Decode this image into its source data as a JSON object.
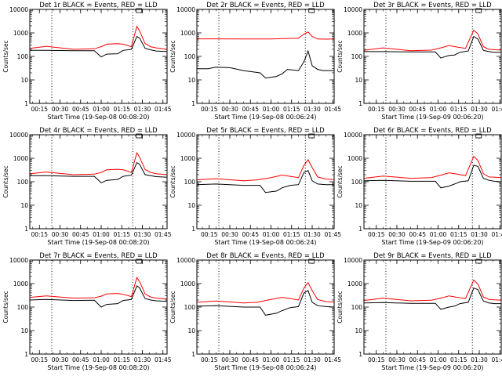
{
  "figure": {
    "ylabel": "Counts/sec"
  },
  "chart_data": [
    {
      "type": "line",
      "title": "Det 1r BLACK = Events, RED = LLD",
      "xlabel": "Start Time (19-Sep-08 00:08:20)",
      "ylabel": "Counts/sec",
      "yscale": "log",
      "ylim": [
        1,
        10000
      ],
      "yticks": [
        "1",
        "10",
        "100",
        "1000",
        "10000"
      ],
      "xticks": [
        "00:15",
        "00:30",
        "00:45",
        "01:00",
        "01:15",
        "01:30",
        "01:45"
      ],
      "xlim": [
        "00:08",
        "01:48"
      ],
      "vlines": [
        "00:24",
        "01:23"
      ],
      "series": [
        {
          "name": "Events",
          "color": "#000000",
          "x": [
            "00:08",
            "00:20",
            "00:40",
            "00:55",
            "01:00",
            "01:04",
            "01:12",
            "01:16",
            "01:22",
            "01:26",
            "01:28",
            "01:32",
            "01:36",
            "01:40",
            "01:44",
            "01:48"
          ],
          "values": [
            180,
            180,
            175,
            175,
            95,
            125,
            130,
            180,
            200,
            700,
            600,
            220,
            190,
            170,
            165,
            160
          ]
        },
        {
          "name": "LLD",
          "color": "#ff0000",
          "x": [
            "00:08",
            "00:20",
            "00:40",
            "00:55",
            "01:00",
            "01:04",
            "01:12",
            "01:16",
            "01:22",
            "01:26",
            "01:28",
            "01:32",
            "01:36",
            "01:40",
            "01:44",
            "01:48"
          ],
          "values": [
            220,
            270,
            200,
            210,
            260,
            330,
            350,
            330,
            260,
            1900,
            1200,
            350,
            260,
            230,
            215,
            200
          ]
        }
      ]
    },
    {
      "type": "line",
      "title": "Det 2r BLACK = Events, RED = LLD",
      "xlabel": "Start Time (19-Sep-08 00:06:24)",
      "ylabel": "Counts/sec",
      "yscale": "log",
      "ylim": [
        1,
        10000
      ],
      "yticks": [
        "1",
        "10",
        "100",
        "1000",
        "10000"
      ],
      "xticks": [
        "00:15",
        "00:30",
        "00:45",
        "01:00",
        "01:15",
        "01:30",
        "01:45"
      ],
      "xlim": [
        "00:06",
        "01:46"
      ],
      "vlines": [
        "00:22",
        "01:25"
      ],
      "series": [
        {
          "name": "Events",
          "color": "#000000",
          "x": [
            "00:06",
            "00:14",
            "00:20",
            "00:30",
            "00:40",
            "00:52",
            "00:56",
            "01:04",
            "01:08",
            "01:12",
            "01:20",
            "01:24",
            "01:27",
            "01:30",
            "01:34",
            "01:38",
            "01:46"
          ],
          "values": [
            30,
            30,
            35,
            33,
            25,
            20,
            12,
            14,
            18,
            28,
            25,
            60,
            170,
            40,
            28,
            25,
            25
          ]
        },
        {
          "name": "LLD",
          "color": "#ff0000",
          "x": [
            "00:06",
            "00:20",
            "00:40",
            "01:00",
            "01:10",
            "01:20",
            "01:24",
            "01:27",
            "01:30",
            "01:34",
            "01:40",
            "01:46"
          ],
          "values": [
            560,
            560,
            550,
            550,
            570,
            600,
            900,
            1100,
            700,
            550,
            540,
            550
          ]
        }
      ]
    },
    {
      "type": "line",
      "title": "Det 3r BLACK = Events, RED = LLD",
      "xlabel": "Start Time (19-Sep-09 00:06:20)",
      "ylabel": "Counts/sec",
      "yscale": "log",
      "ylim": [
        1,
        10000
      ],
      "yticks": [
        "1",
        "10",
        "100",
        "1000",
        "10000"
      ],
      "xticks": [
        "00:15",
        "00:30",
        "00:45",
        "01:00",
        "01:15",
        "01:30",
        "01:45"
      ],
      "xlim": [
        "00:06",
        "01:46"
      ],
      "vlines": [
        "00:22",
        "01:25"
      ],
      "series": [
        {
          "name": "Events",
          "color": "#000000",
          "x": [
            "00:06",
            "00:20",
            "00:40",
            "00:58",
            "01:02",
            "01:08",
            "01:12",
            "01:16",
            "01:22",
            "01:26",
            "01:29",
            "01:33",
            "01:37",
            "01:41",
            "01:46"
          ],
          "values": [
            160,
            160,
            155,
            155,
            85,
            110,
            115,
            150,
            170,
            700,
            550,
            180,
            160,
            150,
            150
          ]
        },
        {
          "name": "LLD",
          "color": "#ff0000",
          "x": [
            "00:06",
            "00:20",
            "00:40",
            "00:55",
            "01:02",
            "01:08",
            "01:14",
            "01:20",
            "01:26",
            "01:29",
            "01:33",
            "01:37",
            "01:46"
          ],
          "values": [
            180,
            230,
            175,
            185,
            230,
            290,
            250,
            220,
            1300,
            900,
            260,
            200,
            185
          ]
        }
      ]
    },
    {
      "type": "line",
      "title": "Det 4r BLACK = Events, RED = LLD",
      "xlabel": "Start Time (19-Sep-08 00:08:20)",
      "ylabel": "Counts/sec",
      "yscale": "log",
      "ylim": [
        1,
        10000
      ],
      "yticks": [
        "1",
        "10",
        "100",
        "1000",
        "10000"
      ],
      "xticks": [
        "00:15",
        "00:30",
        "00:45",
        "01:00",
        "01:15",
        "01:30",
        "01:45"
      ],
      "xlim": [
        "00:08",
        "01:48"
      ],
      "vlines": [
        "00:24",
        "01:23"
      ],
      "series": [
        {
          "name": "Events",
          "color": "#000000",
          "x": [
            "00:08",
            "00:20",
            "00:40",
            "00:55",
            "01:00",
            "01:04",
            "01:12",
            "01:16",
            "01:22",
            "01:26",
            "01:28",
            "01:32",
            "01:36",
            "01:40",
            "01:48"
          ],
          "values": [
            180,
            180,
            170,
            170,
            90,
            115,
            125,
            170,
            190,
            650,
            550,
            200,
            180,
            165,
            155
          ]
        },
        {
          "name": "LLD",
          "color": "#ff0000",
          "x": [
            "00:08",
            "00:20",
            "00:40",
            "00:55",
            "01:00",
            "01:04",
            "01:12",
            "01:16",
            "01:22",
            "01:26",
            "01:28",
            "01:32",
            "01:36",
            "01:40",
            "01:48"
          ],
          "values": [
            220,
            260,
            200,
            210,
            250,
            320,
            340,
            320,
            250,
            1700,
            1100,
            330,
            250,
            220,
            200
          ]
        }
      ]
    },
    {
      "type": "line",
      "title": "Det 5r BLACK = Events, RED = LLD",
      "xlabel": "Start Time (19-Sep-08 00:06:24)",
      "ylabel": "Counts/sec",
      "yscale": "log",
      "ylim": [
        1,
        10000
      ],
      "yticks": [
        "1",
        "10",
        "100",
        "1000",
        "10000"
      ],
      "xticks": [
        "00:15",
        "00:30",
        "00:45",
        "01:00",
        "01:15",
        "01:30",
        "01:45"
      ],
      "xlim": [
        "00:06",
        "01:46"
      ],
      "vlines": [
        "00:22",
        "01:25"
      ],
      "series": [
        {
          "name": "Events",
          "color": "#000000",
          "x": [
            "00:06",
            "00:20",
            "00:40",
            "00:52",
            "00:56",
            "01:04",
            "01:08",
            "01:14",
            "01:20",
            "01:24",
            "01:27",
            "01:30",
            "01:34",
            "01:40",
            "01:46"
          ],
          "values": [
            75,
            80,
            70,
            70,
            35,
            40,
            55,
            70,
            75,
            250,
            300,
            110,
            80,
            75,
            75
          ]
        },
        {
          "name": "LLD",
          "color": "#ff0000",
          "x": [
            "00:06",
            "00:20",
            "00:40",
            "00:50",
            "01:00",
            "01:08",
            "01:14",
            "01:20",
            "01:24",
            "01:27",
            "01:30",
            "01:34",
            "01:40",
            "01:46"
          ],
          "values": [
            120,
            135,
            110,
            120,
            150,
            190,
            170,
            150,
            500,
            850,
            400,
            160,
            130,
            125
          ]
        }
      ]
    },
    {
      "type": "line",
      "title": "Det 6r BLACK = Events, RED = LLD",
      "xlabel": "Start Time (19-Sep-09 00:06:20)",
      "ylabel": "Counts/sec",
      "yscale": "log",
      "ylim": [
        1,
        10000
      ],
      "yticks": [
        "1",
        "10",
        "100",
        "1000",
        "10000"
      ],
      "xticks": [
        "00:15",
        "00:30",
        "00:45",
        "01:00",
        "01:15",
        "01:30",
        "01:45"
      ],
      "xlim": [
        "00:06",
        "01:46"
      ],
      "vlines": [
        "00:22",
        "01:25"
      ],
      "series": [
        {
          "name": "Events",
          "color": "#000000",
          "x": [
            "00:06",
            "00:20",
            "00:40",
            "00:58",
            "01:02",
            "01:08",
            "01:12",
            "01:16",
            "01:22",
            "01:26",
            "01:29",
            "01:33",
            "01:37",
            "01:41",
            "01:46"
          ],
          "values": [
            110,
            115,
            105,
            105,
            55,
            65,
            80,
            100,
            110,
            500,
            450,
            140,
            115,
            105,
            100
          ]
        },
        {
          "name": "LLD",
          "color": "#ff0000",
          "x": [
            "00:06",
            "00:20",
            "00:40",
            "00:55",
            "01:02",
            "01:08",
            "01:14",
            "01:20",
            "01:26",
            "01:29",
            "01:33",
            "01:37",
            "01:46"
          ],
          "values": [
            140,
            175,
            140,
            150,
            190,
            240,
            210,
            180,
            1200,
            800,
            220,
            160,
            150
          ]
        }
      ]
    },
    {
      "type": "line",
      "title": "Det 7r BLACK = Events, RED = LLD",
      "xlabel": "Start Time (19-Sep-08 00:08:20)",
      "ylabel": "Counts/sec",
      "yscale": "log",
      "ylim": [
        1,
        10000
      ],
      "yticks": [
        "1",
        "10",
        "100",
        "1000",
        "10000"
      ],
      "xticks": [
        "00:15",
        "00:30",
        "00:45",
        "01:00",
        "01:15",
        "01:30",
        "01:45"
      ],
      "xlim": [
        "00:08",
        "01:48"
      ],
      "vlines": [
        "00:24",
        "01:23"
      ],
      "series": [
        {
          "name": "Events",
          "color": "#000000",
          "x": [
            "00:08",
            "00:20",
            "00:40",
            "00:55",
            "01:00",
            "01:04",
            "01:12",
            "01:16",
            "01:22",
            "01:26",
            "01:28",
            "01:32",
            "01:36",
            "01:40",
            "01:48"
          ],
          "values": [
            200,
            210,
            190,
            195,
            100,
            130,
            140,
            190,
            210,
            800,
            650,
            230,
            200,
            185,
            175
          ]
        },
        {
          "name": "LLD",
          "color": "#ff0000",
          "x": [
            "00:08",
            "00:20",
            "00:40",
            "00:55",
            "01:00",
            "01:04",
            "01:12",
            "01:16",
            "01:22",
            "01:26",
            "01:28",
            "01:32",
            "01:36",
            "01:40",
            "01:48"
          ],
          "values": [
            260,
            300,
            240,
            250,
            290,
            360,
            380,
            350,
            280,
            1800,
            1200,
            360,
            270,
            240,
            220
          ]
        }
      ]
    },
    {
      "type": "line",
      "title": "Det 8r BLACK = Events, RED = LLD",
      "xlabel": "Start Time (19-Sep-08 00:06:24)",
      "ylabel": "Counts/sec",
      "yscale": "log",
      "ylim": [
        1,
        10000
      ],
      "yticks": [
        "1",
        "10",
        "100",
        "1000",
        "10000"
      ],
      "xticks": [
        "00:15",
        "00:30",
        "00:45",
        "01:00",
        "01:15",
        "01:30",
        "01:45"
      ],
      "xlim": [
        "00:06",
        "01:46"
      ],
      "vlines": [
        "00:22",
        "01:25"
      ],
      "series": [
        {
          "name": "Events",
          "color": "#000000",
          "x": [
            "00:06",
            "00:20",
            "00:40",
            "00:52",
            "00:56",
            "01:04",
            "01:08",
            "01:14",
            "01:20",
            "01:24",
            "01:27",
            "01:30",
            "01:34",
            "01:40",
            "01:46"
          ],
          "values": [
            110,
            115,
            100,
            100,
            45,
            55,
            70,
            95,
            105,
            400,
            500,
            160,
            115,
            105,
            100
          ]
        },
        {
          "name": "LLD",
          "color": "#ff0000",
          "x": [
            "00:06",
            "00:20",
            "00:40",
            "00:50",
            "01:00",
            "01:08",
            "01:14",
            "01:20",
            "01:24",
            "01:27",
            "01:30",
            "01:34",
            "01:40",
            "01:46"
          ],
          "values": [
            160,
            180,
            150,
            160,
            210,
            260,
            230,
            200,
            650,
            1100,
            500,
            210,
            170,
            165
          ]
        }
      ]
    },
    {
      "type": "line",
      "title": "Det 9r BLACK = Events, RED = LLD",
      "xlabel": "Start Time (19-Sep-09 00:06:20)",
      "ylabel": "Counts/sec",
      "yscale": "log",
      "ylim": [
        1,
        10000
      ],
      "yticks": [
        "1",
        "10",
        "100",
        "1000",
        "10000"
      ],
      "xticks": [
        "00:15",
        "00:30",
        "00:45",
        "01:00",
        "01:15",
        "01:30",
        "01:45"
      ],
      "xlim": [
        "00:06",
        "01:46"
      ],
      "vlines": [
        "00:22",
        "01:25"
      ],
      "series": [
        {
          "name": "Events",
          "color": "#000000",
          "x": [
            "00:06",
            "00:20",
            "00:40",
            "00:58",
            "01:02",
            "01:08",
            "01:12",
            "01:16",
            "01:22",
            "01:26",
            "01:29",
            "01:33",
            "01:37",
            "01:41",
            "01:46"
          ],
          "values": [
            150,
            155,
            145,
            145,
            80,
            100,
            110,
            140,
            160,
            650,
            550,
            180,
            150,
            140,
            140
          ]
        },
        {
          "name": "LLD",
          "color": "#ff0000",
          "x": [
            "00:06",
            "00:20",
            "00:40",
            "00:55",
            "01:02",
            "01:08",
            "01:14",
            "01:20",
            "01:26",
            "01:29",
            "01:33",
            "01:37",
            "01:46"
          ],
          "values": [
            190,
            240,
            185,
            195,
            240,
            300,
            260,
            230,
            1400,
            950,
            270,
            210,
            195
          ]
        }
      ]
    }
  ]
}
